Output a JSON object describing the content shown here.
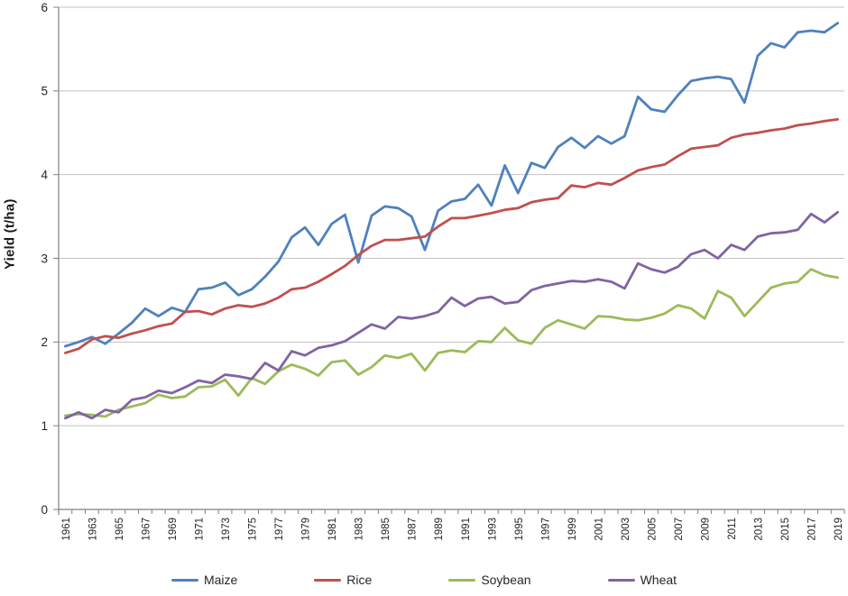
{
  "chart_data": {
    "type": "line",
    "ylabel": "Yield (t/ha)",
    "xlabel": "",
    "ylim": [
      0,
      6
    ],
    "yticks": [
      0,
      1,
      2,
      3,
      4,
      5,
      6
    ],
    "grid": "horizontal",
    "legend_position": "bottom",
    "x": [
      1961,
      1962,
      1963,
      1964,
      1965,
      1966,
      1967,
      1968,
      1969,
      1970,
      1971,
      1972,
      1973,
      1974,
      1975,
      1976,
      1977,
      1978,
      1979,
      1980,
      1981,
      1982,
      1983,
      1984,
      1985,
      1986,
      1987,
      1988,
      1989,
      1990,
      1991,
      1992,
      1993,
      1994,
      1995,
      1996,
      1997,
      1998,
      1999,
      2000,
      2001,
      2002,
      2003,
      2004,
      2005,
      2006,
      2007,
      2008,
      2009,
      2010,
      2011,
      2012,
      2013,
      2014,
      2015,
      2016,
      2017,
      2018,
      2019
    ],
    "xtick_labels": [
      "1961",
      "1963",
      "1965",
      "1967",
      "1969",
      "1971",
      "1973",
      "1975",
      "1977",
      "1979",
      "1981",
      "1983",
      "1985",
      "1987",
      "1989",
      "1991",
      "1993",
      "1995",
      "1997",
      "1999",
      "2001",
      "2003",
      "2005",
      "2007",
      "2009",
      "2011",
      "2013",
      "2015",
      "2017",
      "2019"
    ],
    "series": [
      {
        "name": "Maize",
        "color": "#4F81BD",
        "values": [
          1.95,
          2.0,
          2.06,
          1.98,
          2.1,
          2.23,
          2.4,
          2.31,
          2.41,
          2.36,
          2.63,
          2.65,
          2.71,
          2.56,
          2.63,
          2.78,
          2.96,
          3.25,
          3.37,
          3.16,
          3.41,
          3.52,
          2.95,
          3.51,
          3.62,
          3.6,
          3.5,
          3.1,
          3.57,
          3.68,
          3.71,
          3.88,
          3.63,
          4.11,
          3.78,
          4.14,
          4.08,
          4.33,
          4.44,
          4.32,
          4.46,
          4.37,
          4.46,
          4.93,
          4.78,
          4.75,
          4.95,
          5.12,
          5.15,
          5.17,
          5.14,
          4.86,
          5.42,
          5.57,
          5.52,
          5.7,
          5.72,
          5.7,
          5.81
        ]
      },
      {
        "name": "Rice",
        "color": "#C0504D",
        "values": [
          1.87,
          1.92,
          2.03,
          2.07,
          2.05,
          2.1,
          2.14,
          2.19,
          2.22,
          2.36,
          2.37,
          2.33,
          2.4,
          2.44,
          2.42,
          2.46,
          2.53,
          2.63,
          2.65,
          2.72,
          2.81,
          2.91,
          3.04,
          3.15,
          3.22,
          3.22,
          3.24,
          3.26,
          3.38,
          3.48,
          3.48,
          3.51,
          3.54,
          3.58,
          3.6,
          3.67,
          3.7,
          3.72,
          3.87,
          3.85,
          3.9,
          3.88,
          3.96,
          4.05,
          4.09,
          4.12,
          4.22,
          4.31,
          4.33,
          4.35,
          4.44,
          4.48,
          4.5,
          4.53,
          4.55,
          4.59,
          4.61,
          4.64,
          4.66
        ]
      },
      {
        "name": "Soybean",
        "color": "#9BBB59",
        "values": [
          1.12,
          1.14,
          1.13,
          1.11,
          1.19,
          1.23,
          1.27,
          1.37,
          1.33,
          1.35,
          1.46,
          1.47,
          1.55,
          1.36,
          1.57,
          1.5,
          1.65,
          1.73,
          1.68,
          1.6,
          1.76,
          1.78,
          1.61,
          1.7,
          1.84,
          1.81,
          1.86,
          1.66,
          1.87,
          1.9,
          1.88,
          2.01,
          2.0,
          2.17,
          2.02,
          1.98,
          2.17,
          2.26,
          2.21,
          2.16,
          2.31,
          2.3,
          2.27,
          2.26,
          2.29,
          2.34,
          2.44,
          2.4,
          2.28,
          2.61,
          2.53,
          2.31,
          2.48,
          2.65,
          2.7,
          2.72,
          2.87,
          2.8,
          2.77
        ]
      },
      {
        "name": "Wheat",
        "color": "#8064A2",
        "values": [
          1.09,
          1.16,
          1.09,
          1.19,
          1.16,
          1.31,
          1.34,
          1.42,
          1.39,
          1.46,
          1.54,
          1.51,
          1.61,
          1.59,
          1.56,
          1.75,
          1.66,
          1.89,
          1.84,
          1.93,
          1.96,
          2.01,
          2.11,
          2.21,
          2.16,
          2.3,
          2.28,
          2.31,
          2.36,
          2.53,
          2.43,
          2.52,
          2.54,
          2.46,
          2.48,
          2.62,
          2.67,
          2.7,
          2.73,
          2.72,
          2.75,
          2.72,
          2.64,
          2.94,
          2.87,
          2.83,
          2.9,
          3.05,
          3.1,
          3.0,
          3.16,
          3.1,
          3.26,
          3.3,
          3.31,
          3.34,
          3.53,
          3.43,
          3.55
        ]
      }
    ],
    "style": {
      "grid_color": "#C3C3C3",
      "axis_color": "#808080",
      "tick_text_color": "#262626",
      "line_width": 2.8
    }
  }
}
